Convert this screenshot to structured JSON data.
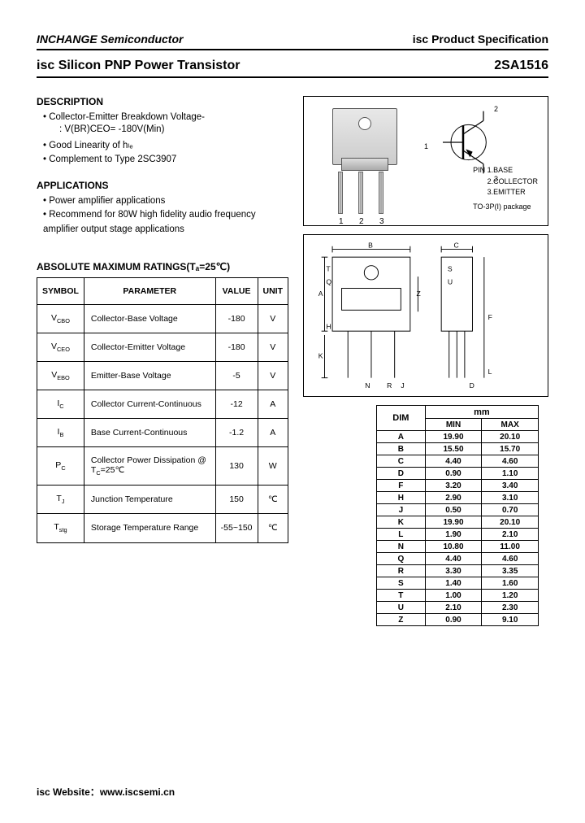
{
  "header": {
    "company": "INCHANGE Semiconductor",
    "spec": "isc Product Specification"
  },
  "title": {
    "product": "isc Silicon PNP Power Transistor",
    "partno": "2SA1516"
  },
  "description": {
    "head": "DESCRIPTION",
    "items": [
      "Collector-Emitter Breakdown Voltage-",
      "Good Linearity of hₗₑ",
      "Complement to Type 2SC3907"
    ],
    "sub": ": V(BR)CEO= -180V(Min)"
  },
  "applications": {
    "head": "APPLICATIONS",
    "items": [
      "Power amplifier applications",
      "Recommend for 80W high fidelity audio frequency amplifier output stage applications"
    ]
  },
  "ratings": {
    "head": "ABSOLUTE MAXIMUM RATINGS(Tₐ=25℃)",
    "columns": [
      "SYMBOL",
      "PARAMETER",
      "VALUE",
      "UNIT"
    ],
    "rows": [
      [
        "V_CBO",
        "Collector-Base Voltage",
        "-180",
        "V"
      ],
      [
        "V_CEO",
        "Collector-Emitter Voltage",
        "-180",
        "V"
      ],
      [
        "V_EBO",
        "Emitter-Base Voltage",
        "-5",
        "V"
      ],
      [
        "I_C",
        "Collector Current-Continuous",
        "-12",
        "A"
      ],
      [
        "I_B",
        "Base Current-Continuous",
        "-1.2",
        "A"
      ],
      [
        "P_C",
        "Collector Power Dissipation @ T_C=25℃",
        "130",
        "W"
      ],
      [
        "T_J",
        "Junction Temperature",
        "150",
        "℃"
      ],
      [
        "T_stg",
        "Storage Temperature Range",
        "-55~150",
        "℃"
      ]
    ]
  },
  "pins": {
    "label_pin": "PIN",
    "p1": "1.BASE",
    "p2": "2.COLLECTOR",
    "p3": "3.EMITTER",
    "pkg": "TO-3P(I) package",
    "n1": "1",
    "n2": "2",
    "n3": "3",
    "s2": "2",
    "s1": "1",
    "s3": "3"
  },
  "dims": {
    "head_mm": "mm",
    "head_dim": "DIM",
    "head_min": "MIN",
    "head_max": "MAX",
    "rows": [
      [
        "A",
        "19.90",
        "20.10"
      ],
      [
        "B",
        "15.50",
        "15.70"
      ],
      [
        "C",
        "4.40",
        "4.60"
      ],
      [
        "D",
        "0.90",
        "1.10"
      ],
      [
        "F",
        "3.20",
        "3.40"
      ],
      [
        "H",
        "2.90",
        "3.10"
      ],
      [
        "J",
        "0.50",
        "0.70"
      ],
      [
        "K",
        "19.90",
        "20.10"
      ],
      [
        "L",
        "1.90",
        "2.10"
      ],
      [
        "N",
        "10.80",
        "11.00"
      ],
      [
        "Q",
        "4.40",
        "4.60"
      ],
      [
        "R",
        "3.30",
        "3.35"
      ],
      [
        "S",
        "1.40",
        "1.60"
      ],
      [
        "T",
        "1.00",
        "1.20"
      ],
      [
        "U",
        "2.10",
        "2.30"
      ],
      [
        "Z",
        "0.90",
        "9.10"
      ]
    ]
  },
  "footer": {
    "label": "isc Website：",
    "url": "www.iscsemi.cn"
  }
}
